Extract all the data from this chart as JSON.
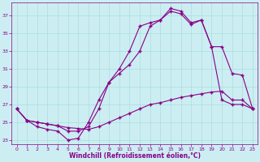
{
  "xlabel": "Windchill (Refroidissement éolien,°C)",
  "bg_color": "#cceef2",
  "line_color": "#880088",
  "grid_color": "#aadddd",
  "xlim": [
    -0.5,
    23.5
  ],
  "ylim": [
    22.5,
    38.5
  ],
  "xticks": [
    0,
    1,
    2,
    3,
    4,
    5,
    6,
    7,
    8,
    9,
    10,
    11,
    12,
    13,
    14,
    15,
    16,
    17,
    18,
    19,
    20,
    21,
    22,
    23
  ],
  "yticks": [
    23,
    25,
    27,
    29,
    31,
    33,
    35,
    37
  ],
  "line1_x": [
    0,
    1,
    2,
    3,
    4,
    5,
    6,
    7,
    8,
    9,
    10,
    11,
    12,
    13,
    14,
    15,
    16,
    17,
    18,
    19,
    20,
    21,
    22,
    23
  ],
  "line1_y": [
    26.5,
    25.2,
    25.0,
    24.8,
    24.6,
    24.4,
    24.3,
    24.2,
    24.5,
    25.0,
    25.5,
    26.0,
    26.5,
    27.0,
    27.2,
    27.5,
    27.8,
    28.0,
    28.2,
    28.4,
    28.5,
    27.5,
    27.5,
    26.5
  ],
  "line2_x": [
    0,
    1,
    2,
    3,
    4,
    5,
    6,
    7,
    8,
    9,
    10,
    11,
    12,
    13,
    14,
    15,
    16,
    17,
    18,
    19,
    20,
    21,
    22,
    23
  ],
  "line2_y": [
    26.5,
    25.2,
    25.0,
    24.8,
    24.6,
    24.0,
    24.0,
    24.5,
    26.5,
    29.5,
    31.0,
    33.0,
    35.8,
    36.2,
    36.5,
    37.5,
    37.2,
    36.0,
    36.5,
    33.5,
    33.5,
    30.5,
    30.3,
    26.5
  ],
  "line3_x": [
    0,
    1,
    2,
    3,
    4,
    5,
    6,
    7,
    8,
    9,
    10,
    11,
    12,
    13,
    14,
    15,
    16,
    17,
    18,
    19,
    20,
    21,
    22,
    23
  ],
  "line3_y": [
    26.5,
    25.2,
    24.5,
    24.2,
    24.0,
    23.0,
    23.2,
    25.0,
    27.5,
    29.5,
    30.5,
    31.5,
    33.0,
    35.8,
    36.5,
    37.8,
    37.5,
    36.2,
    36.5,
    33.5,
    27.5,
    27.0,
    27.0,
    26.5
  ]
}
